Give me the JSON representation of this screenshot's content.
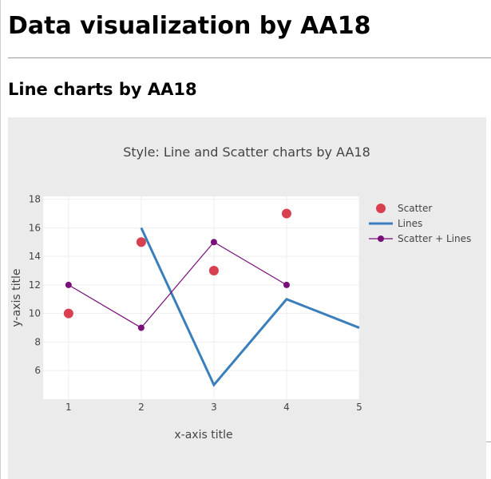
{
  "page": {
    "title": "Data visualization by AA18",
    "section_title": "Line charts by AA18"
  },
  "chart_data": {
    "type": "line",
    "title": "Style: Line and Scatter charts by AA18",
    "xlabel": "x-axis title",
    "ylabel": "y-axis title",
    "xlim": [
      0.65,
      5.0
    ],
    "ylim": [
      4.0,
      18.2
    ],
    "xticks": [
      1,
      2,
      3,
      4,
      5
    ],
    "yticks": [
      6,
      8,
      10,
      12,
      14,
      16,
      18
    ],
    "grid": true,
    "legend_position": "right",
    "series": [
      {
        "name": "Scatter",
        "mode": "markers",
        "color": "#d9404f",
        "x": [
          1,
          2,
          3,
          4
        ],
        "y": [
          10,
          15,
          13,
          17
        ]
      },
      {
        "name": "Lines",
        "mode": "lines",
        "color": "#3a7fbb",
        "x": [
          2,
          3,
          4,
          5
        ],
        "y": [
          16,
          5,
          11,
          9
        ]
      },
      {
        "name": "Scatter + Lines",
        "mode": "lines+markers",
        "color": "#7a0e7a",
        "x": [
          1,
          2,
          3,
          4
        ],
        "y": [
          12,
          9,
          15,
          12
        ]
      }
    ]
  }
}
